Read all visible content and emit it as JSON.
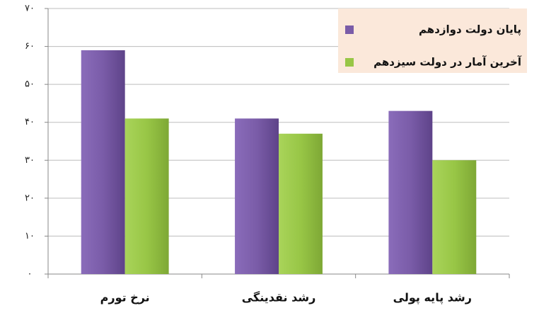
{
  "chart_data": {
    "type": "bar",
    "categories": [
      "نرخ تورم",
      "رشد نقدینگی",
      "رشد پایه پولی"
    ],
    "series": [
      {
        "name": "پایان دولت دوازدهم",
        "color": "#7a5ca8",
        "values": [
          59,
          41,
          43
        ]
      },
      {
        "name": "آخرین آمار در دولت سیزدهم",
        "color": "#98c646",
        "values": [
          41,
          37,
          30
        ]
      }
    ],
    "ylim": [
      0,
      70
    ],
    "yticks": [
      {
        "value": 0,
        "label": "۰"
      },
      {
        "value": 10,
        "label": "۱۰"
      },
      {
        "value": 20,
        "label": "۲۰"
      },
      {
        "value": 30,
        "label": "۳۰"
      },
      {
        "value": 40,
        "label": "۴۰"
      },
      {
        "value": 50,
        "label": "۵۰"
      },
      {
        "value": 60,
        "label": "۶۰"
      },
      {
        "value": 70,
        "label": "۷۰"
      }
    ],
    "grid": true,
    "legend": "top-right"
  }
}
